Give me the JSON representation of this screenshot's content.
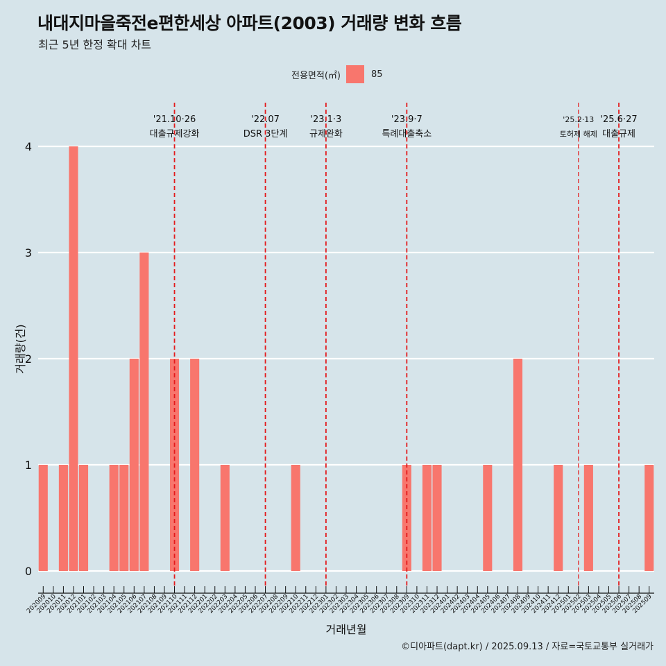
{
  "header": {
    "title": "내대지마을죽전e편한세상 아파트(2003) 거래량 변화 흐름",
    "subtitle": "최근 5년 한정 확대 차트"
  },
  "legend": {
    "title": "전용면적(㎡)",
    "label": "85",
    "color": "#f8766d"
  },
  "footer": {
    "caption": "©디아파트(dapt.kr) / 2025.09.13 / 자료=국토교통부 실거래가"
  },
  "chart_data": {
    "type": "bar",
    "title": "내대지마을죽전e편한세상 아파트(2003) 거래량 변화 흐름",
    "xlabel": "거래년월",
    "ylabel": "거래량(건)",
    "ylim": [
      0,
      4
    ],
    "yticks": [
      0,
      1,
      2,
      3,
      4
    ],
    "bar_color": "#f8766d",
    "categories": [
      "202009",
      "202010",
      "202011",
      "202012",
      "202101",
      "202102",
      "202103",
      "202104",
      "202105",
      "202106",
      "202107",
      "202108",
      "202109",
      "202110",
      "202111",
      "202112",
      "202201",
      "202202",
      "202203",
      "202204",
      "202205",
      "202206",
      "202207",
      "202208",
      "202209",
      "202210",
      "202211",
      "202212",
      "202301",
      "202302",
      "202303",
      "202304",
      "202305",
      "202306",
      "202307",
      "202308",
      "202309",
      "202310",
      "202311",
      "202312",
      "202401",
      "202402",
      "202403",
      "202404",
      "202405",
      "202406",
      "202407",
      "202408",
      "202409",
      "202410",
      "202411",
      "202412",
      "202501",
      "202502",
      "202503",
      "202504",
      "202505",
      "202506",
      "202507",
      "202508",
      "202509"
    ],
    "values": [
      1,
      0,
      1,
      4,
      1,
      0,
      0,
      1,
      1,
      2,
      3,
      0,
      0,
      2,
      0,
      2,
      0,
      0,
      1,
      0,
      0,
      0,
      0,
      0,
      0,
      1,
      0,
      0,
      0,
      0,
      0,
      0,
      0,
      0,
      0,
      0,
      1,
      0,
      1,
      1,
      0,
      0,
      0,
      0,
      1,
      0,
      0,
      2,
      0,
      0,
      0,
      1,
      0,
      0,
      1,
      0,
      0,
      0,
      0,
      0,
      1
    ],
    "annotations": [
      {
        "index": 13.0,
        "date": "'21.10·26",
        "label": "대출규제강화",
        "small": false
      },
      {
        "index": 22.0,
        "date": "'22.07",
        "label": "DSR 3단계",
        "small": false
      },
      {
        "index": 28.0,
        "date": "'23.1·3",
        "label": "규제완화",
        "small": false
      },
      {
        "index": 36.0,
        "date": "'23.9·7",
        "label": "특례대출축소",
        "small": false
      },
      {
        "index": 53.0,
        "date": "'25.2·13",
        "label": "토허제 해제",
        "small": true
      },
      {
        "index": 57.0,
        "date": "'25.6·27",
        "label": "대출규제",
        "small": false
      }
    ],
    "grid": true
  }
}
